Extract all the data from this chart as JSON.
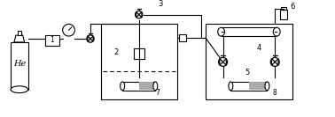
{
  "bg_color": "#ffffff",
  "line_color": "#000000",
  "gray_fill": "#aaaaaa",
  "labels": {
    "He": "He",
    "1": "1",
    "2": "2",
    "3": "3",
    "4": "4",
    "5": "5",
    "6": "6",
    "7": "7",
    "8": "8"
  },
  "figsize": [
    3.78,
    1.33
  ],
  "dpi": 100
}
